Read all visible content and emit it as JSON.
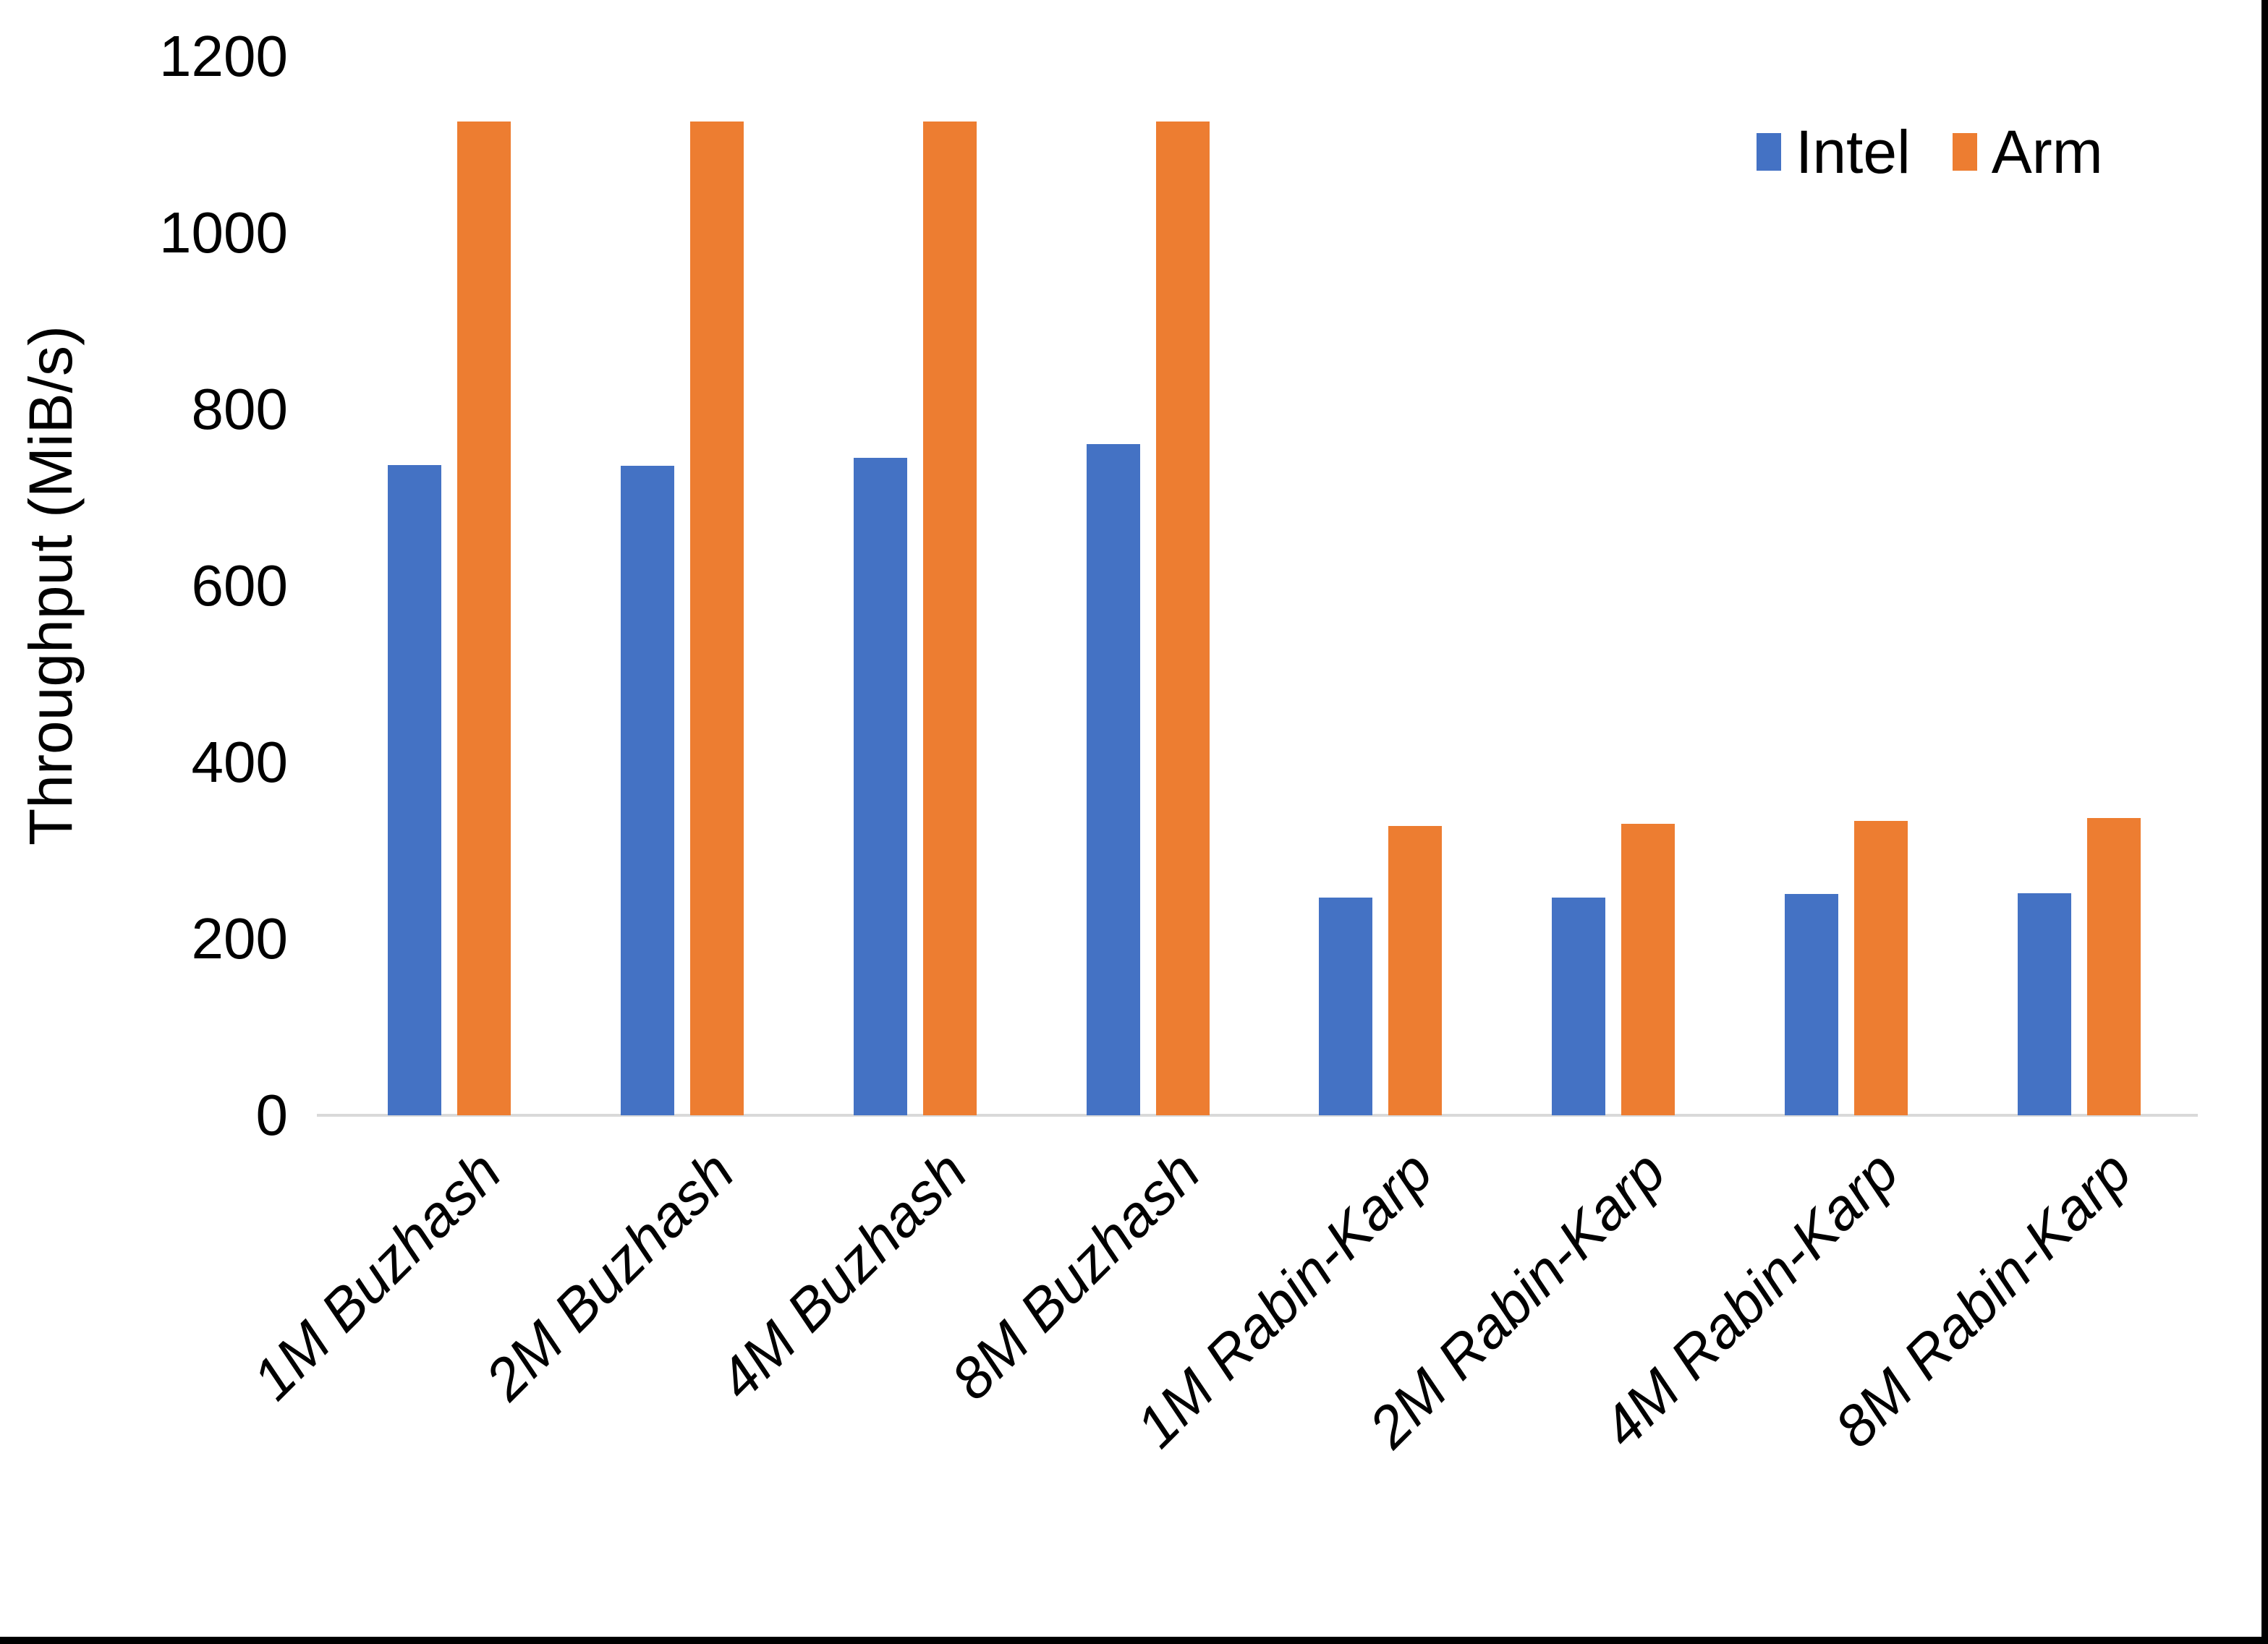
{
  "chart_data": {
    "type": "bar",
    "title": "",
    "xlabel": "",
    "ylabel": "Throughput (MiB/s)",
    "ylim": [
      0,
      1200
    ],
    "yticks": [
      0,
      200,
      400,
      600,
      800,
      1000,
      1200
    ],
    "grid": false,
    "legend_position": "top-right",
    "axis_line_color": "#D9D9D9",
    "categories": [
      "1M Buzhash",
      "2M Buzhash",
      "4M Buzhash",
      "8M Buzhash",
      "1M Rabin-Karp",
      "2M Rabin-Karp",
      "4M Rabin-Karp",
      "8M Rabin-Karp"
    ],
    "series": [
      {
        "name": "Intel",
        "color": "#4472C4",
        "values": [
          737,
          736,
          745,
          761,
          247,
          247,
          251,
          252
        ]
      },
      {
        "name": "Arm",
        "color": "#ED7D31",
        "values": [
          1126,
          1126,
          1126,
          1126,
          328,
          330,
          334,
          337
        ]
      }
    ]
  },
  "legend": {
    "items": [
      {
        "label": "Intel",
        "color": "#4472C4"
      },
      {
        "label": "Arm",
        "color": "#ED7D31"
      }
    ]
  },
  "frame": {
    "edge_color": "#000000"
  }
}
